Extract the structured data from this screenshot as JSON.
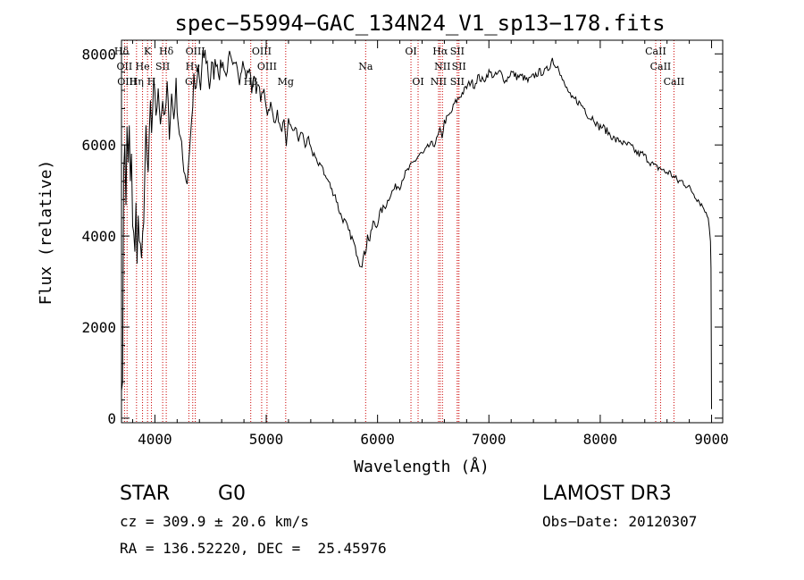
{
  "chart_data": {
    "type": "line",
    "title": "spec−55994−GAC_134N24_V1_sp13−178.fits",
    "xlabel": "Wavelength (Å)",
    "ylabel": "Flux (relative)",
    "xlim": [
      3700,
      9100
    ],
    "ylim": [
      -100,
      8300
    ],
    "xticks": [
      4000,
      5000,
      6000,
      7000,
      8000,
      9000
    ],
    "xtick_labels": [
      "4000",
      "5000",
      "6000",
      "7000",
      "8000",
      "9000"
    ],
    "yticks": [
      0,
      2000,
      4000,
      6000,
      8000
    ],
    "ytick_labels": [
      "0",
      "2000",
      "4000",
      "6000",
      "8000"
    ],
    "series": [
      {
        "name": "spectrum",
        "color": "#000000",
        "x": [
          3700,
          3710,
          3720,
          3730,
          3740,
          3750,
          3760,
          3770,
          3780,
          3790,
          3800,
          3810,
          3820,
          3830,
          3840,
          3850,
          3860,
          3880,
          3900,
          3920,
          3940,
          3960,
          3970,
          3990,
          4010,
          4030,
          4050,
          4070,
          4090,
          4110,
          4130,
          4150,
          4170,
          4190,
          4210,
          4230,
          4250,
          4270,
          4290,
          4310,
          4330,
          4350,
          4370,
          4390,
          4410,
          4430,
          4450,
          4470,
          4490,
          4510,
          4530,
          4550,
          4580,
          4610,
          4640,
          4670,
          4700,
          4730,
          4760,
          4790,
          4820,
          4850,
          4870,
          4890,
          4910,
          4930,
          4950,
          4980,
          5010,
          5040,
          5070,
          5100,
          5130,
          5160,
          5180,
          5200,
          5230,
          5260,
          5290,
          5320,
          5350,
          5380,
          5410,
          5440,
          5470,
          5500,
          5530,
          5560,
          5590,
          5620,
          5650,
          5680,
          5710,
          5740,
          5760,
          5780,
          5800,
          5820,
          5840,
          5860,
          5880,
          5895,
          5910,
          5930,
          5960,
          5990,
          6020,
          6050,
          6080,
          6110,
          6140,
          6170,
          6200,
          6230,
          6260,
          6290,
          6320,
          6350,
          6380,
          6410,
          6440,
          6470,
          6500,
          6530,
          6560,
          6580,
          6600,
          6630,
          6660,
          6690,
          6720,
          6750,
          6780,
          6810,
          6840,
          6870,
          6900,
          6950,
          7000,
          7050,
          7100,
          7150,
          7200,
          7250,
          7300,
          7350,
          7400,
          7450,
          7500,
          7540,
          7570,
          7600,
          7620,
          7650,
          7680,
          7710,
          7740,
          7780,
          7820,
          7860,
          7900,
          7940,
          7980,
          8020,
          8060,
          8100,
          8140,
          8180,
          8220,
          8260,
          8300,
          8340,
          8380,
          8420,
          8460,
          8500,
          8540,
          8580,
          8620,
          8660,
          8700,
          8740,
          8780,
          8820,
          8850,
          8880,
          8910,
          8930,
          8950,
          8970,
          8980,
          8990,
          8995,
          9000
        ],
        "y": [
          600,
          1000,
          5300,
          6100,
          4800,
          6300,
          5600,
          6500,
          5100,
          5700,
          4200,
          4000,
          3600,
          4600,
          3500,
          4500,
          3800,
          3700,
          4300,
          6300,
          5400,
          6900,
          6200,
          7300,
          6700,
          7100,
          6600,
          7000,
          6500,
          7300,
          6300,
          7100,
          6600,
          7300,
          6500,
          6100,
          5700,
          5400,
          5200,
          5900,
          6500,
          7400,
          7100,
          7700,
          7200,
          7900,
          8000,
          7800,
          7300,
          7700,
          7600,
          7900,
          7600,
          7800,
          7500,
          8000,
          7700,
          7900,
          7400,
          7800,
          7500,
          7700,
          7200,
          7600,
          7100,
          7400,
          7000,
          7200,
          6700,
          6900,
          6500,
          6700,
          6300,
          6500,
          5900,
          6600,
          6300,
          6400,
          6100,
          6300,
          6000,
          6100,
          5800,
          5800,
          5500,
          5600,
          5300,
          5200,
          5000,
          4900,
          4600,
          4400,
          4300,
          4100,
          4000,
          3900,
          3700,
          3600,
          3400,
          3400,
          3600,
          3700,
          4000,
          3900,
          4300,
          4200,
          4500,
          4600,
          4700,
          4900,
          5000,
          5100,
          5100,
          5300,
          5400,
          5500,
          5600,
          5700,
          5800,
          5800,
          5900,
          6000,
          6000,
          6100,
          6300,
          6200,
          6500,
          6600,
          6700,
          6900,
          7000,
          7100,
          7200,
          7300,
          7400,
          7300,
          7500,
          7400,
          7600,
          7500,
          7600,
          7400,
          7600,
          7500,
          7500,
          7400,
          7500,
          7600,
          7600,
          7700,
          7900,
          7700,
          7800,
          7500,
          7300,
          7200,
          7000,
          7000,
          6900,
          6800,
          6600,
          6600,
          6400,
          6400,
          6300,
          6200,
          6100,
          6100,
          6000,
          6000,
          5900,
          5800,
          5800,
          5700,
          5600,
          5500,
          5500,
          5400,
          5400,
          5300,
          5200,
          5200,
          5100,
          5000,
          4900,
          4800,
          4700,
          4600,
          4500,
          4400,
          4200,
          3900,
          3300,
          200
        ]
      }
    ],
    "lines": [
      {
        "label": "Hδ",
        "x": 3700,
        "row": 0
      },
      {
        "label": "K",
        "x": 3934,
        "row": 0
      },
      {
        "label": "Hδ",
        "x": 4102,
        "row": 0
      },
      {
        "label": "OIII",
        "x": 4363,
        "row": 0
      },
      {
        "label": "OIII",
        "x": 4959,
        "row": 0
      },
      {
        "label": "OI",
        "x": 6300,
        "row": 0
      },
      {
        "label": "Hα",
        "x": 6563,
        "row": 0
      },
      {
        "label": "SII",
        "x": 6716,
        "row": 0
      },
      {
        "label": "CaII",
        "x": 8498,
        "row": 0
      },
      {
        "label": "OII",
        "x": 3727,
        "row": 1
      },
      {
        "label": "He",
        "x": 3889,
        "row": 1
      },
      {
        "label": "SII",
        "x": 4070,
        "row": 1
      },
      {
        "label": "Hγ",
        "x": 4340,
        "row": 1
      },
      {
        "label": "OIII",
        "x": 5007,
        "row": 1
      },
      {
        "label": "Na",
        "x": 5893,
        "row": 1
      },
      {
        "label": "NII",
        "x": 6583,
        "row": 1
      },
      {
        "label": "SII",
        "x": 6731,
        "row": 1
      },
      {
        "label": "CaII",
        "x": 8542,
        "row": 1
      },
      {
        "label": "OIII",
        "x": 3750,
        "row": 2
      },
      {
        "label": "Hη",
        "x": 3835,
        "row": 2
      },
      {
        "label": "H",
        "x": 3969,
        "row": 2
      },
      {
        "label": "G",
        "x": 4305,
        "row": 2
      },
      {
        "label": "Hβ",
        "x": 4861,
        "row": 2
      },
      {
        "label": "Mg",
        "x": 5175,
        "row": 2
      },
      {
        "label": "OI",
        "x": 6364,
        "row": 2
      },
      {
        "label": "NII",
        "x": 6548,
        "row": 2
      },
      {
        "label": "SII",
        "x": 6716,
        "row": 2
      },
      {
        "label": "CaII",
        "x": 8662,
        "row": 2
      }
    ],
    "line_marker_color": "#cc0000"
  },
  "info": {
    "object_class": "STAR",
    "subclass": "G0",
    "survey": "LAMOST DR3",
    "velocity": "cz = 309.9 ± 20.6 km/s",
    "obs_date": "Obs−Date: 20120307",
    "coords": "RA = 136.52220, DEC =  25.45976"
  }
}
